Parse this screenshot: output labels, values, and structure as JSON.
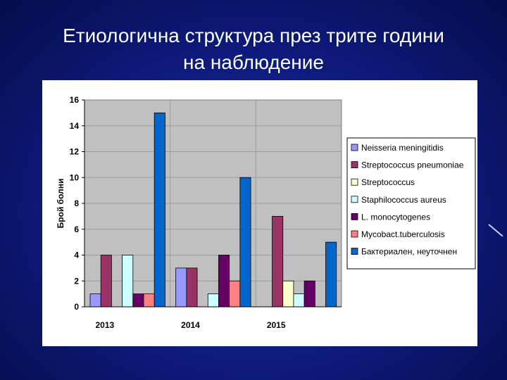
{
  "slide": {
    "title_line1": "Етиологична структура през трите години",
    "title_line2": "на наблюдение"
  },
  "chart_data": {
    "type": "bar",
    "title": "",
    "ylabel": "Брой болни",
    "xlabel": "",
    "ylim": [
      0,
      16
    ],
    "yticks": [
      "0",
      "2",
      "4",
      "6",
      "8",
      "10",
      "12",
      "14",
      "16"
    ],
    "grid": true,
    "legend_position": "right",
    "categories": [
      "2013",
      "2014",
      "2015"
    ],
    "series": [
      {
        "name": "Neisseria meningitidis",
        "color": "#9999ff",
        "values": [
          1,
          3,
          0
        ]
      },
      {
        "name": "Streptococcus pneumoniae",
        "color": "#993366",
        "values": [
          4,
          3,
          7
        ]
      },
      {
        "name": "Streptococcus",
        "color": "#ffffcc",
        "values": [
          0,
          0,
          2
        ]
      },
      {
        "name": "Staphilococcus aureus",
        "color": "#ccffff",
        "values": [
          4,
          1,
          1
        ]
      },
      {
        "name": "L. monocytogenes",
        "color": "#660066",
        "values": [
          1,
          4,
          2
        ]
      },
      {
        "name": "Mycobact.tuberculosis",
        "color": "#ff8080",
        "values": [
          1,
          2,
          0
        ]
      },
      {
        "name": "Бактериален, неуточнен",
        "color": "#0066cc",
        "values": [
          15,
          10,
          5
        ]
      }
    ]
  }
}
